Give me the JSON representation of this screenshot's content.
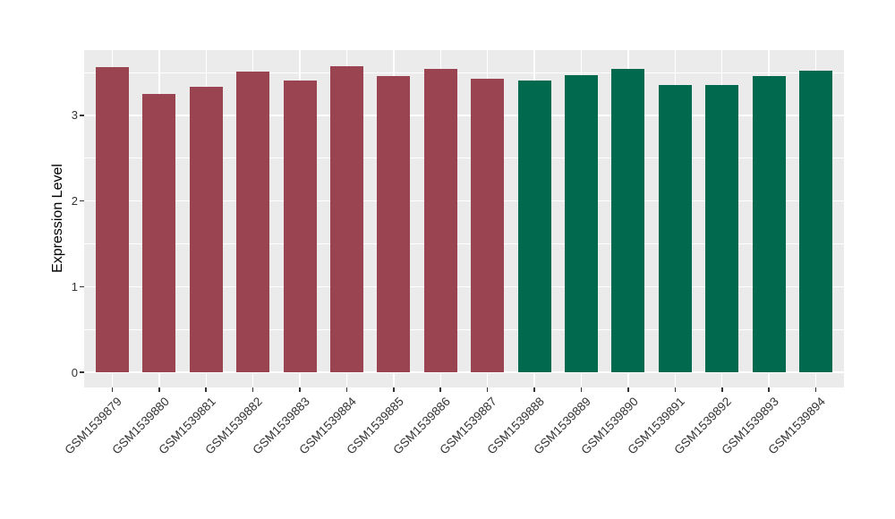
{
  "chart_data": {
    "type": "bar",
    "title": "",
    "xlabel": "",
    "ylabel": "Expression Level",
    "categories": [
      "GSM1539879",
      "GSM1539880",
      "GSM1539881",
      "GSM1539882",
      "GSM1539883",
      "GSM1539884",
      "GSM1539885",
      "GSM1539886",
      "GSM1539887",
      "GSM1539888",
      "GSM1539889",
      "GSM1539890",
      "GSM1539891",
      "GSM1539892",
      "GSM1539893",
      "GSM1539894"
    ],
    "values": [
      3.57,
      3.25,
      3.34,
      3.51,
      3.41,
      3.58,
      3.46,
      3.54,
      3.43,
      3.41,
      3.47,
      3.54,
      3.36,
      3.36,
      3.46,
      3.52
    ],
    "bar_colors": [
      "#9A4351",
      "#9A4351",
      "#9A4351",
      "#9A4351",
      "#9A4351",
      "#9A4351",
      "#9A4351",
      "#9A4351",
      "#9A4351",
      "#00694E",
      "#00694E",
      "#00694E",
      "#00694E",
      "#00694E",
      "#00694E",
      "#00694E"
    ],
    "y_ticks": [
      0,
      1,
      2,
      3
    ],
    "y_minor_ticks": [
      0.5,
      1.5,
      2.5,
      3.5
    ],
    "ylim": [
      0,
      3.76
    ],
    "grid": "white major and minor gridlines on grey panel",
    "legend_position": "none",
    "colors": {
      "group_a_bar": "#9A4351",
      "group_b_bar": "#00694E",
      "panel_bg": "#EBEBEB",
      "gridline": "#FFFFFF",
      "axis_text": "#333333",
      "outer_bg": "#FFFFFF"
    }
  }
}
